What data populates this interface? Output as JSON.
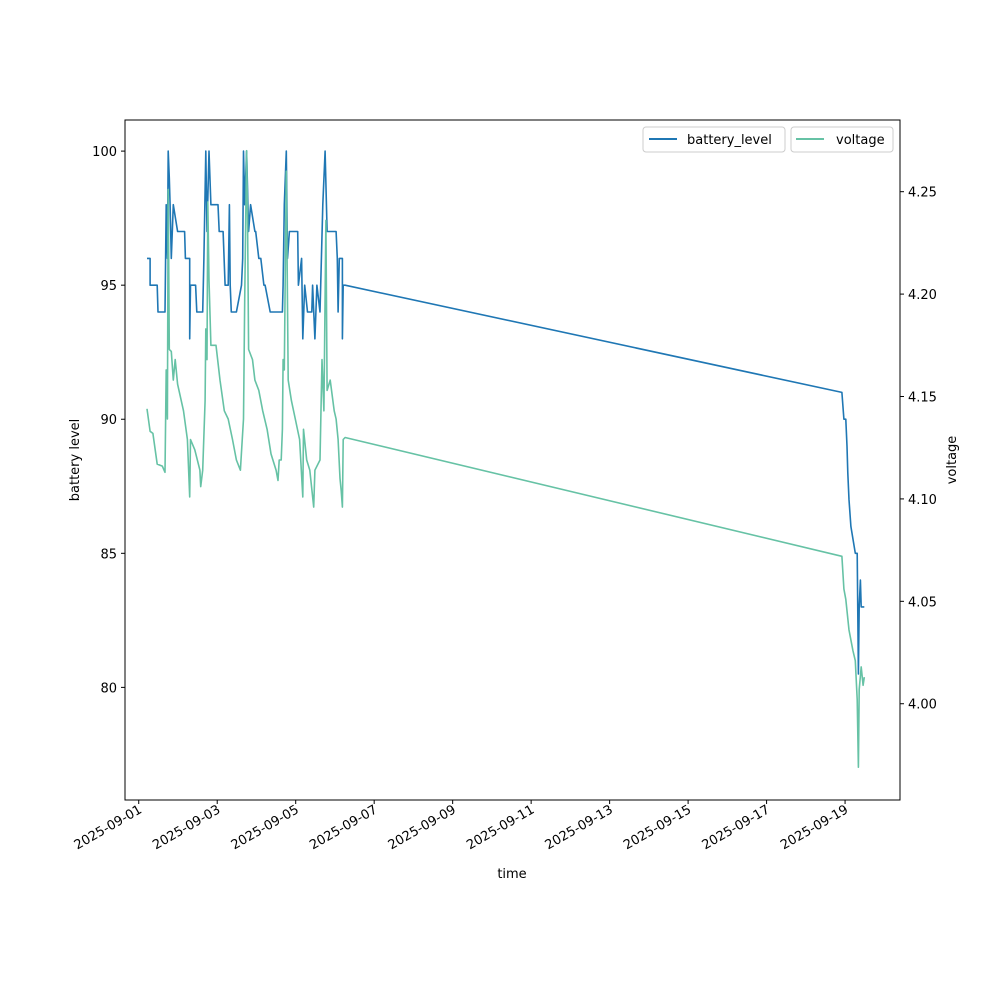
{
  "chart_data": {
    "type": "line",
    "xlabel": "time",
    "ylabel_left": "battery level",
    "ylabel_right": "voltage",
    "x_unit": "days since 2025-09-01",
    "xlim": [
      -0.35,
      19.4
    ],
    "ylim_left": [
      75.8,
      101.16
    ],
    "ylim_right": [
      3.953,
      4.285
    ],
    "x_ticks": [
      0,
      2,
      4,
      6,
      8,
      10,
      12,
      14,
      16,
      18
    ],
    "x_tick_labels": [
      "2025-09-01",
      "2025-09-03",
      "2025-09-05",
      "2025-09-07",
      "2025-09-09",
      "2025-09-11",
      "2025-09-13",
      "2025-09-15",
      "2025-09-17",
      "2025-09-19"
    ],
    "y_ticks_left": [
      80,
      85,
      90,
      95,
      100
    ],
    "y_tick_labels_left": [
      "80",
      "85",
      "90",
      "95",
      "100"
    ],
    "y_ticks_right": [
      4.0,
      4.05,
      4.1,
      4.15,
      4.2,
      4.25
    ],
    "y_tick_labels_right": [
      "4.00",
      "4.05",
      "4.10",
      "4.15",
      "4.20",
      "4.25"
    ],
    "legend": [
      {
        "label": "battery_level",
        "color": "#1f77b4",
        "placement": "top-right"
      },
      {
        "label": "voltage",
        "color": "#66c2a5",
        "placement": "top-right"
      }
    ],
    "series": [
      {
        "name": "battery_level",
        "axis": "left",
        "color": "#1f77b4",
        "x": [
          0.21,
          0.29,
          0.29,
          0.47,
          0.49,
          0.67,
          0.7,
          0.73,
          0.75,
          0.78,
          0.8,
          0.83,
          0.88,
          0.99,
          1.14,
          1.17,
          1.19,
          1.3,
          1.3,
          1.32,
          1.45,
          1.48,
          1.63,
          1.66,
          1.71,
          1.74,
          1.79,
          1.84,
          2.02,
          2.05,
          2.15,
          2.2,
          2.28,
          2.31,
          2.33,
          2.36,
          2.49,
          2.62,
          2.65,
          2.67,
          2.7,
          2.75,
          2.8,
          2.85,
          2.96,
          2.98,
          3.06,
          3.11,
          3.19,
          3.22,
          3.35,
          3.4,
          3.66,
          3.68,
          3.71,
          3.76,
          3.79,
          3.84,
          4.05,
          4.07,
          4.15,
          4.18,
          4.23,
          4.3,
          4.41,
          4.43,
          4.49,
          4.54,
          4.62,
          4.69,
          4.75,
          4.8,
          5.03,
          5.06,
          5.08,
          5.11,
          5.19,
          5.19,
          5.21,
          5.26,
          17.92,
          17.97,
          18.02,
          18.05,
          18.07,
          18.1,
          18.15,
          18.26,
          18.31,
          18.34,
          18.36,
          18.39,
          18.41,
          18.49
        ],
        "y": [
          96,
          96,
          95,
          95,
          94,
          94,
          98,
          96,
          100,
          99,
          98,
          96,
          98,
          97,
          97,
          97,
          96,
          96,
          93,
          95,
          95,
          94,
          94,
          96,
          100,
          97,
          100,
          98,
          98,
          97,
          97,
          95,
          95,
          98,
          95,
          94,
          94,
          95,
          96,
          100,
          98,
          100,
          97,
          98,
          97,
          97,
          96,
          96,
          95,
          95,
          94,
          94,
          94,
          95,
          98,
          100,
          96,
          97,
          97,
          95,
          96,
          93,
          95,
          94,
          94,
          95,
          93,
          95,
          94,
          98,
          100,
          97,
          97,
          96,
          94,
          96,
          96,
          93,
          95,
          95,
          91,
          90,
          90,
          89,
          88,
          87,
          86,
          85,
          85,
          80.5,
          83,
          84,
          83,
          83
        ]
      },
      {
        "name": "voltage",
        "axis": "right",
        "color": "#66c2a5",
        "x": [
          0.21,
          0.29,
          0.36,
          0.47,
          0.6,
          0.67,
          0.7,
          0.73,
          0.75,
          0.78,
          0.83,
          0.88,
          0.93,
          0.99,
          1.14,
          1.24,
          1.3,
          1.32,
          1.43,
          1.56,
          1.58,
          1.63,
          1.69,
          1.71,
          1.74,
          1.76,
          1.79,
          1.84,
          1.97,
          2.07,
          2.18,
          2.28,
          2.39,
          2.49,
          2.59,
          2.62,
          2.67,
          2.7,
          2.75,
          2.77,
          2.8,
          2.9,
          2.96,
          3.06,
          3.16,
          3.27,
          3.37,
          3.5,
          3.55,
          3.58,
          3.63,
          3.66,
          3.68,
          3.71,
          3.76,
          3.81,
          3.89,
          3.99,
          4.1,
          4.18,
          4.2,
          4.28,
          4.36,
          4.46,
          4.49,
          4.62,
          4.67,
          4.72,
          4.77,
          4.8,
          4.88,
          4.98,
          5.03,
          5.08,
          5.13,
          5.16,
          5.19,
          5.21,
          5.26,
          17.92,
          17.97,
          18.02,
          18.1,
          18.2,
          18.26,
          18.31,
          18.34,
          18.36,
          18.41,
          18.46,
          18.49
        ],
        "y": [
          4.144,
          4.133,
          4.132,
          4.117,
          4.116,
          4.113,
          4.163,
          4.139,
          4.251,
          4.173,
          4.172,
          4.158,
          4.168,
          4.156,
          4.143,
          4.129,
          4.101,
          4.129,
          4.124,
          4.114,
          4.106,
          4.114,
          4.148,
          4.183,
          4.168,
          4.245,
          4.207,
          4.175,
          4.175,
          4.158,
          4.143,
          4.139,
          4.129,
          4.119,
          4.114,
          4.123,
          4.139,
          4.197,
          4.27,
          4.246,
          4.173,
          4.168,
          4.158,
          4.153,
          4.143,
          4.134,
          4.122,
          4.114,
          4.109,
          4.119,
          4.119,
          4.134,
          4.168,
          4.163,
          4.26,
          4.158,
          4.148,
          4.139,
          4.129,
          4.101,
          4.134,
          4.119,
          4.114,
          4.096,
          4.114,
          4.119,
          4.168,
          4.143,
          4.236,
          4.153,
          4.158,
          4.143,
          4.139,
          4.129,
          4.11,
          4.104,
          4.096,
          4.129,
          4.13,
          4.072,
          4.056,
          4.051,
          4.036,
          4.026,
          4.021,
          4.002,
          3.969,
          4.007,
          4.018,
          4.009,
          4.013
        ]
      }
    ]
  }
}
